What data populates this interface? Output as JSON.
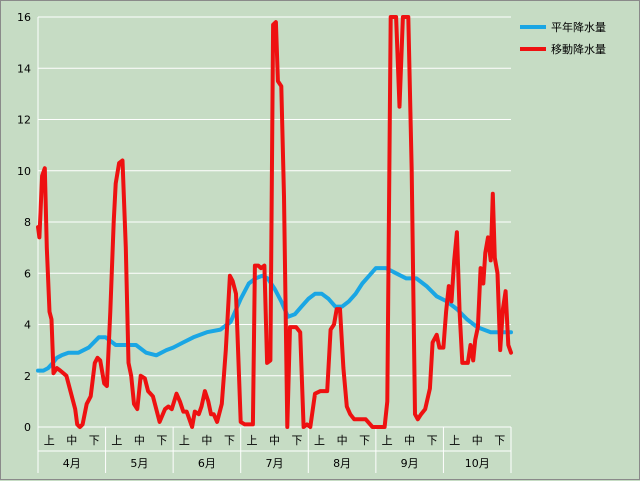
{
  "chart_data": {
    "type": "line",
    "title": "",
    "xlabel": "",
    "ylabel": "",
    "ylim": [
      0,
      16
    ],
    "yticks": [
      0,
      2,
      4,
      6,
      8,
      10,
      12,
      14,
      16
    ],
    "grid": true,
    "legend_placement": "top-right",
    "months": [
      "4月",
      "5月",
      "6月",
      "7月",
      "8月",
      "9月",
      "10月"
    ],
    "periods": [
      "上",
      "中",
      "下"
    ],
    "colors": {
      "background": "#c6dcc4",
      "grid": "#ffffff",
      "normal": "#1aa6e4",
      "moving": "#ee1111"
    },
    "series": [
      {
        "name": "平年降水量",
        "color": "#1aa6e4",
        "x": [
          0,
          0.08,
          0.15,
          0.22,
          0.28,
          0.35,
          0.45,
          0.55,
          0.6,
          0.75,
          0.9,
          1.0,
          1.15,
          1.3,
          1.45,
          1.6,
          1.75,
          1.9,
          2.0,
          2.15,
          2.3,
          2.5,
          2.7,
          2.85,
          3.0,
          3.12,
          3.22,
          3.32,
          3.4,
          3.5,
          3.6,
          3.7,
          3.8,
          3.9,
          4.0,
          4.1,
          4.2,
          4.3,
          4.4,
          4.5,
          4.6,
          4.7,
          4.8,
          4.9,
          5.0,
          5.15,
          5.3,
          5.45,
          5.6,
          5.75,
          5.9,
          6.05,
          6.2,
          6.35,
          6.5,
          6.7,
          6.85,
          7.0
        ],
        "y": [
          2.2,
          2.2,
          2.3,
          2.5,
          2.7,
          2.8,
          2.9,
          2.9,
          2.9,
          3.1,
          3.5,
          3.5,
          3.2,
          3.2,
          3.2,
          2.9,
          2.8,
          3.0,
          3.1,
          3.3,
          3.5,
          3.7,
          3.8,
          4.1,
          5.0,
          5.6,
          5.8,
          5.9,
          5.8,
          5.4,
          4.9,
          4.3,
          4.4,
          4.7,
          5.0,
          5.2,
          5.2,
          5.0,
          4.7,
          4.7,
          4.9,
          5.2,
          5.6,
          5.9,
          6.2,
          6.2,
          6.0,
          5.8,
          5.8,
          5.5,
          5.1,
          4.9,
          4.6,
          4.2,
          3.9,
          3.7,
          3.7,
          3.7
        ]
      },
      {
        "name": "移動降水量",
        "color": "#ee1111",
        "x": [
          0,
          0.02,
          0.06,
          0.1,
          0.13,
          0.17,
          0.2,
          0.23,
          0.28,
          0.33,
          0.42,
          0.55,
          0.58,
          0.62,
          0.66,
          0.72,
          0.78,
          0.84,
          0.88,
          0.92,
          0.98,
          1.02,
          1.07,
          1.12,
          1.15,
          1.2,
          1.25,
          1.3,
          1.34,
          1.38,
          1.42,
          1.47,
          1.52,
          1.58,
          1.63,
          1.7,
          1.8,
          1.88,
          1.93,
          1.98,
          2.05,
          2.1,
          2.15,
          2.2,
          2.28,
          2.32,
          2.38,
          2.42,
          2.47,
          2.52,
          2.56,
          2.6,
          2.65,
          2.72,
          2.78,
          2.84,
          2.88,
          2.93,
          3.0,
          3.06,
          3.1,
          3.15,
          3.18,
          3.21,
          3.26,
          3.3,
          3.35,
          3.39,
          3.44,
          3.48,
          3.52,
          3.55,
          3.6,
          3.64,
          3.69,
          3.73,
          3.78,
          3.82,
          3.88,
          3.93,
          3.98,
          4.03,
          4.1,
          4.18,
          4.28,
          4.33,
          4.38,
          4.42,
          4.47,
          4.52,
          4.57,
          4.62,
          4.68,
          4.75,
          4.85,
          4.95,
          5.02,
          5.08,
          5.13,
          5.17,
          5.22,
          5.26,
          5.3,
          5.35,
          5.4,
          5.44,
          5.48,
          5.53,
          5.58,
          5.62,
          5.67,
          5.73,
          5.8,
          5.84,
          5.9,
          5.94,
          6.0,
          6.04,
          6.08,
          6.12,
          6.16,
          6.2,
          6.24,
          6.28,
          6.32,
          6.36,
          6.4,
          6.44,
          6.47,
          6.51,
          6.55,
          6.59,
          6.62,
          6.66,
          6.7,
          6.73,
          6.76,
          6.8,
          6.84,
          6.88,
          6.92,
          6.96,
          7.0
        ],
        "y": [
          7.8,
          7.4,
          9.8,
          10.1,
          7.0,
          4.5,
          4.2,
          2.1,
          2.3,
          2.2,
          2.0,
          0.7,
          0.1,
          0.0,
          0.1,
          0.9,
          1.2,
          2.5,
          2.7,
          2.6,
          1.7,
          1.6,
          4.5,
          8.0,
          9.5,
          10.3,
          10.4,
          7.0,
          2.5,
          2.0,
          0.9,
          0.7,
          2.0,
          1.9,
          1.4,
          1.2,
          0.2,
          0.7,
          0.8,
          0.7,
          1.3,
          1.0,
          0.6,
          0.6,
          0.0,
          0.6,
          0.5,
          0.8,
          1.4,
          1.0,
          0.5,
          0.5,
          0.2,
          0.9,
          3.0,
          5.9,
          5.7,
          5.2,
          0.2,
          0.1,
          0.1,
          0.1,
          0.1,
          6.3,
          6.3,
          6.2,
          6.3,
          2.5,
          2.6,
          15.7,
          15.8,
          13.5,
          13.3,
          9.0,
          0.0,
          3.9,
          3.9,
          3.9,
          3.7,
          0.0,
          0.1,
          0.0,
          1.3,
          1.4,
          1.4,
          3.8,
          4.0,
          4.6,
          4.6,
          2.3,
          0.8,
          0.5,
          0.3,
          0.3,
          0.3,
          0.0,
          0.0,
          0.0,
          0.0,
          1.0,
          16.0,
          16.0,
          16.0,
          12.5,
          16.0,
          16.0,
          16.0,
          10.0,
          0.5,
          0.3,
          0.5,
          0.7,
          1.5,
          3.3,
          3.6,
          3.1,
          3.1,
          4.5,
          5.5,
          4.9,
          6.5,
          7.6,
          4.5,
          2.5,
          2.5,
          2.5,
          3.2,
          2.6,
          3.4,
          3.9,
          6.2,
          5.6,
          6.8,
          7.4,
          6.5,
          9.1,
          6.6,
          6.0,
          3.0,
          4.6,
          5.3,
          3.2,
          2.9
        ]
      }
    ]
  }
}
